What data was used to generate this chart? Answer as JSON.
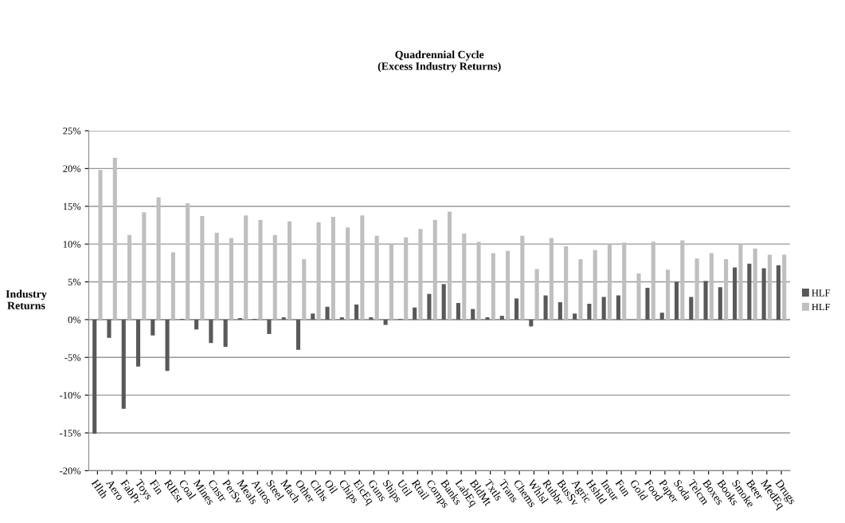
{
  "chart_data": {
    "type": "bar",
    "title": "Quadrennial Cycle\n(Excess Industry Returns)",
    "ylabel": "Industry\nReturns",
    "categories": [
      "Hlth",
      "Aero",
      "FabPr",
      "Toys",
      "Fin",
      "RlEst",
      "Coal",
      "Mines",
      "Cnstr",
      "PerSv",
      "Meals",
      "Autos",
      "Steel",
      "Mach",
      "Other",
      "Clths",
      "Oil",
      "Chips",
      "ElcEq",
      "Guns",
      "Ships",
      "Util",
      "Rtail",
      "Comps",
      "Banks",
      "LabEq",
      "BldMt",
      "Txtls",
      "Trans",
      "Chems",
      "Whlsl",
      "Rubbr",
      "BusSv",
      "Agric",
      "Hshld",
      "Insur",
      "Fun",
      "Gold",
      "Food",
      "Paper",
      "Soda",
      "Telcm",
      "Boxes",
      "Books",
      "Smoke",
      "Beer",
      "MedEq",
      "Drugs"
    ],
    "series": [
      {
        "name": "HLF",
        "color": "#595959",
        "values": [
          -15.1,
          -2.4,
          -11.8,
          -6.2,
          -2.1,
          -6.8,
          0.1,
          -1.3,
          -3.1,
          -3.6,
          0.2,
          0.1,
          -1.9,
          0.3,
          -4.0,
          0.8,
          1.7,
          0.3,
          2.0,
          0.3,
          -0.7,
          0.1,
          1.6,
          3.4,
          4.7,
          2.2,
          1.4,
          0.3,
          0.5,
          2.8,
          -0.9,
          3.2,
          2.3,
          0.8,
          2.1,
          3.0,
          3.2,
          0.0,
          4.2,
          0.9,
          5.0,
          3.0,
          5.1,
          4.3,
          6.9,
          7.4,
          6.8,
          7.2
        ]
      },
      {
        "name": "HLF",
        "color": "#bfbfbf",
        "values": [
          19.8,
          21.4,
          11.2,
          14.2,
          16.2,
          8.9,
          15.4,
          13.7,
          11.5,
          10.8,
          13.8,
          13.2,
          11.2,
          13.0,
          8.0,
          12.9,
          13.6,
          12.2,
          13.8,
          11.1,
          10.1,
          10.9,
          12.0,
          13.2,
          14.3,
          11.4,
          10.3,
          8.8,
          9.1,
          11.1,
          6.7,
          10.8,
          9.7,
          8.0,
          9.2,
          10.0,
          10.2,
          6.1,
          10.3,
          6.6,
          10.5,
          8.1,
          8.8,
          8.0,
          10.0,
          9.4,
          8.6,
          8.6
        ]
      }
    ],
    "ylim": [
      -20,
      25
    ],
    "yticks": [
      {
        "value": -20,
        "label": "-20%"
      },
      {
        "value": -15,
        "label": "-15%"
      },
      {
        "value": -10,
        "label": "-10%"
      },
      {
        "value": -5,
        "label": "-5%"
      },
      {
        "value": 0,
        "label": "0%"
      },
      {
        "value": 5,
        "label": "5%"
      },
      {
        "value": 10,
        "label": "10%"
      },
      {
        "value": 15,
        "label": "15%"
      },
      {
        "value": 20,
        "label": "20%"
      },
      {
        "value": 25,
        "label": "25%"
      }
    ],
    "grid": "y",
    "legend": "right"
  }
}
